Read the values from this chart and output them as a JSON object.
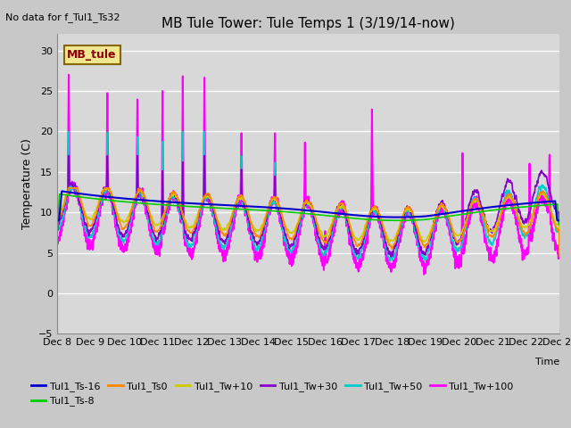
{
  "title": "MB Tule Tower: Tule Temps 1 (3/19/14-now)",
  "no_data_text": "No data for f_Tul1_Ts32",
  "ylabel": "Temperature (C)",
  "xlabel": "Time",
  "ylim": [
    -5,
    32
  ],
  "yticks": [
    -5,
    0,
    5,
    10,
    15,
    20,
    25,
    30
  ],
  "fig_bg": "#c8c8c8",
  "plot_bg": "#d8d8d8",
  "grid_color": "#b8b8b8",
  "legend_box_color": "#f0e890",
  "legend_box_edge": "#886600",
  "legend_box_text": "MB_tule",
  "series": [
    {
      "label": "Tul1_Ts-16",
      "color": "#0000cc",
      "lw": 1.5
    },
    {
      "label": "Tul1_Ts-8",
      "color": "#00cc00",
      "lw": 1.2
    },
    {
      "label": "Tul1_Ts0",
      "color": "#ff8800",
      "lw": 1.2
    },
    {
      "label": "Tul1_Tw+10",
      "color": "#cccc00",
      "lw": 1.2
    },
    {
      "label": "Tul1_Tw+30",
      "color": "#8800cc",
      "lw": 1.2
    },
    {
      "label": "Tul1_Tw+50",
      "color": "#00cccc",
      "lw": 1.2
    },
    {
      "label": "Tul1_Tw+100",
      "color": "#ff00ff",
      "lw": 1.5
    }
  ],
  "n_days": 15,
  "day_start": 8
}
